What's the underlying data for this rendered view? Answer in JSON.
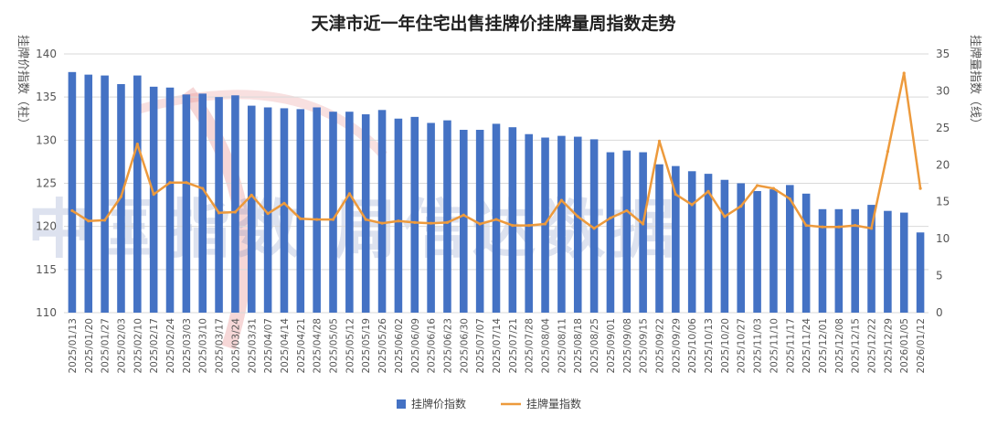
{
  "chart_data": {
    "type": "bar+line",
    "title": "天津市近一年住宅出售挂牌价挂牌量周指数走势",
    "y_left_label": "挂牌价指数（柱）",
    "y_right_label": "挂牌量指数（线）",
    "y_left_lim": [
      110,
      140
    ],
    "y_left_ticks": [
      "110",
      "115",
      "120",
      "125",
      "130",
      "135",
      "140"
    ],
    "y_right_lim": [
      0,
      35
    ],
    "y_right_ticks": [
      "0",
      "5",
      "10",
      "15",
      "20",
      "25",
      "30",
      "35"
    ],
    "grid": true,
    "legend_position": "bottom",
    "watermark": "中国指数 周信达数据",
    "colors": {
      "bar": "#4472c4",
      "line": "#ed9a3c"
    },
    "categories": [
      "2025/01/13",
      "2025/01/20",
      "2025/01/27",
      "2025/02/03",
      "2025/02/10",
      "2025/02/17",
      "2025/02/24",
      "2025/03/03",
      "2025/03/10",
      "2025/03/17",
      "2025/03/24",
      "2025/03/31",
      "2025/04/07",
      "2025/04/14",
      "2025/04/21",
      "2025/04/28",
      "2025/05/05",
      "2025/05/12",
      "2025/05/19",
      "2025/05/26",
      "2025/06/02",
      "2025/06/09",
      "2025/06/16",
      "2025/06/23",
      "2025/06/30",
      "2025/07/07",
      "2025/07/14",
      "2025/07/21",
      "2025/07/28",
      "2025/08/04",
      "2025/08/11",
      "2025/08/18",
      "2025/08/25",
      "2025/09/01",
      "2025/09/08",
      "2025/09/15",
      "2025/09/22",
      "2025/09/29",
      "2025/10/06",
      "2025/10/13",
      "2025/10/20",
      "2025/10/27",
      "2025/11/03",
      "2025/11/10",
      "2025/11/17",
      "2025/11/24",
      "2025/12/01",
      "2025/12/08",
      "2025/12/15",
      "2025/12/22",
      "2025/12/29",
      "2026/01/05",
      "2026/01/12"
    ],
    "series": [
      {
        "name": "挂牌价指数",
        "type": "bar",
        "axis": "left",
        "values": [
          137.9,
          137.6,
          137.5,
          136.5,
          137.5,
          136.2,
          136.1,
          135.3,
          135.4,
          135.0,
          135.2,
          134.0,
          133.8,
          133.7,
          133.6,
          133.8,
          133.3,
          133.3,
          133.0,
          133.5,
          132.5,
          132.7,
          132.0,
          132.3,
          131.2,
          131.2,
          131.9,
          131.5,
          130.7,
          130.3,
          130.5,
          130.4,
          130.1,
          128.6,
          128.8,
          128.6,
          127.2,
          127.0,
          126.4,
          126.1,
          125.4,
          125.0,
          124.1,
          124.3,
          124.8,
          123.8,
          122.0,
          122.0,
          122.0,
          122.5,
          121.8,
          121.6,
          119.3
        ]
      },
      {
        "name": "挂牌量指数",
        "type": "line",
        "axis": "right",
        "values": [
          13.8,
          12.4,
          12.5,
          15.7,
          22.8,
          16.0,
          17.6,
          17.6,
          16.8,
          13.5,
          13.6,
          15.9,
          13.4,
          14.8,
          12.7,
          12.6,
          12.6,
          16.1,
          12.6,
          12.1,
          12.4,
          12.2,
          12.1,
          12.2,
          13.2,
          12.0,
          12.6,
          11.8,
          11.8,
          12.0,
          15.2,
          13.0,
          11.4,
          12.8,
          13.8,
          12.0,
          23.2,
          16.0,
          14.6,
          16.4,
          13.0,
          14.4,
          17.2,
          16.8,
          15.4,
          11.8,
          11.6,
          11.6,
          11.8,
          11.4,
          21.8,
          32.4,
          16.8
        ]
      }
    ]
  }
}
